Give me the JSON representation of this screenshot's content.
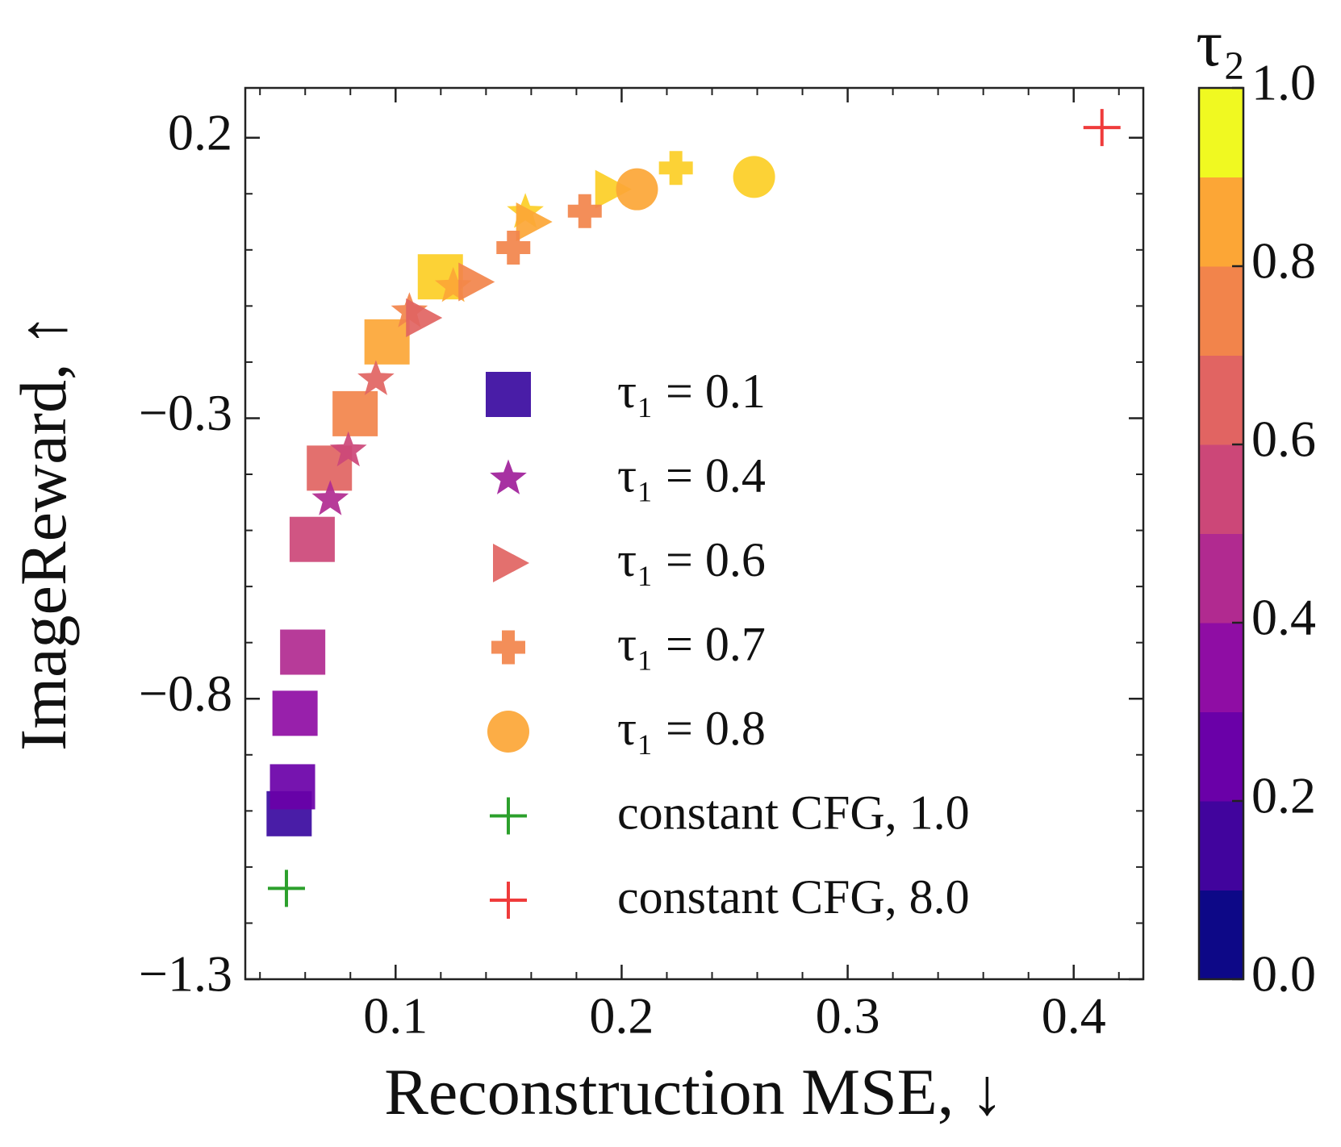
{
  "chart_data": {
    "type": "scatter",
    "x_label": "Reconstruction MSE, ↓",
    "y_label": "ImageReward, ↑",
    "xlim": [
      0.0335,
      0.4308
    ],
    "ylim": [
      -1.3,
      0.2887
    ],
    "xticks": [
      0.1,
      0.2,
      0.3,
      0.4
    ],
    "yticks": [
      {
        "value": -1.3,
        "label": "−1.3"
      },
      {
        "value": -0.8,
        "label": "−0.8"
      },
      {
        "value": -0.3,
        "label": "−0.3"
      },
      0.2
    ],
    "xminorticks": [
      0.04,
      0.06,
      0.08,
      0.12,
      0.14,
      0.16,
      0.18,
      0.22,
      0.24,
      0.26,
      0.28,
      0.32,
      0.34,
      0.36,
      0.38,
      0.42
    ],
    "yminorticks": [
      0.1,
      0,
      -0.1,
      -0.2,
      -0.4,
      -0.5,
      -0.6,
      -0.7,
      -0.9,
      -1.0,
      -1.1,
      -1.2
    ],
    "series": [
      {
        "name": "τ₁ = 0.1",
        "marker": "square",
        "color": "#3a0aa0",
        "x": [
          0.0529,
          0.0544,
          0.0555,
          0.0589,
          0.0631,
          0.0707,
          0.0821,
          0.0962,
          0.1198
        ],
        "values": [
          -1.005,
          -0.957,
          -0.826,
          -0.717,
          -0.516,
          -0.389,
          -0.292,
          -0.164,
          -0.048
        ],
        "colors": [
          "#3a0aa0",
          "#6a00a8",
          "#8f0da4",
          "#b12a90",
          "#cc4778",
          "#e16462",
          "#f2844b",
          "#fca636",
          "#fcce25"
        ]
      },
      {
        "name": "τ₁ = 0.4",
        "marker": "star",
        "color": "#a0209a",
        "x": [
          0.0711,
          0.0791,
          0.0913,
          0.1061,
          0.1255,
          0.1574
        ],
        "values": [
          -0.445,
          -0.358,
          -0.231,
          -0.11,
          -0.065,
          0.067
        ],
        "colors": [
          "#b12a90",
          "#cc4778",
          "#e16462",
          "#f2844b",
          "#fca636",
          "#fcce25"
        ]
      },
      {
        "name": "τ₁ = 0.6",
        "marker": "triangle",
        "color": "#e16462",
        "x": [
          0.1114,
          0.1346,
          0.1601,
          0.1951
        ],
        "values": [
          -0.121,
          -0.057,
          0.05,
          0.108
        ],
        "colors": [
          "#e16462",
          "#f2844b",
          "#fca636",
          "#fcce25"
        ]
      },
      {
        "name": "τ₁ = 0.7",
        "marker": "plus",
        "color": "#f2844b",
        "x": [
          0.1521,
          0.1837,
          0.224
        ],
        "values": [
          0.004,
          0.069,
          0.146
        ],
        "colors": [
          "#f2844b",
          "#f2844b",
          "#fcce25"
        ]
      },
      {
        "name": "τ₁ = 0.8",
        "marker": "circle",
        "color": "#fca636",
        "x": [
          0.2068,
          0.2586
        ],
        "values": [
          0.108,
          0.13
        ],
        "colors": [
          "#fca636",
          "#fcce25"
        ]
      },
      {
        "name": "constant CFG, 1.0",
        "marker": "cross",
        "color": "#2ca02c",
        "x": [
          0.0517
        ],
        "values": [
          -1.138
        ],
        "colors": [
          "#2ca02c"
        ]
      },
      {
        "name": "constant CFG, 8.0",
        "marker": "cross",
        "color": "#ef3b3b",
        "x": [
          0.4125
        ],
        "values": [
          0.218
        ],
        "colors": [
          "#ef3b3b"
        ]
      }
    ],
    "colorbar": {
      "label": "τ₂",
      "lim": [
        0,
        1
      ],
      "colors": [
        "#0d0887",
        "#41049d",
        "#6a00a8",
        "#8f0da4",
        "#b12a90",
        "#cc4778",
        "#e16462",
        "#f2844b",
        "#fca636",
        "#f0f921"
      ],
      "ticks": [
        {
          "value": 0,
          "label": "0.0"
        },
        0.2,
        0.4,
        0.6,
        0.8,
        {
          "value": 1,
          "label": "1.0"
        }
      ]
    }
  }
}
